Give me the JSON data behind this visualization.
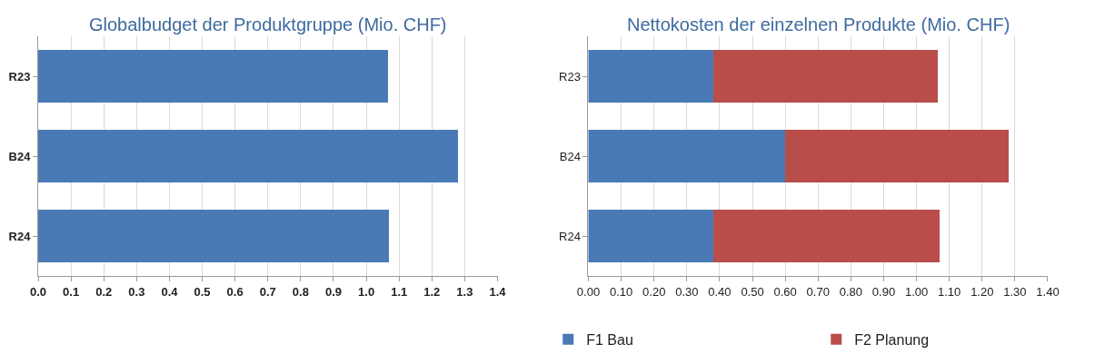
{
  "chart_data": [
    {
      "type": "bar",
      "title": "Globalbudget der Produktgruppe (Mio. CHF)",
      "orientation": "horizontal",
      "categories": [
        "R23",
        "B24",
        "R24"
      ],
      "values": [
        1.065,
        1.28,
        1.07
      ],
      "color": "#4a7ab5",
      "xlim": [
        0,
        1.4
      ],
      "xticks": [
        {
          "value": 0,
          "label": "0.0"
        },
        0.1,
        0.2,
        0.3,
        0.4,
        0.5,
        0.6,
        0.7,
        0.8,
        0.9,
        {
          "value": 1,
          "label": "1.0"
        },
        1.1,
        1.2,
        1.3,
        1.4
      ],
      "grid": "x",
      "legend": false
    },
    {
      "type": "bar",
      "title": "Nettokosten der einzelnen Produkte (Mio. CHF)",
      "orientation": "horizontal",
      "stacked": true,
      "categories": [
        "R23",
        "B24",
        "R24"
      ],
      "series": [
        {
          "name": "F1 Bau",
          "color": "#4a7ab5",
          "values": [
            0.38,
            0.6,
            0.38
          ]
        },
        {
          "name": "F2 Planung",
          "color": "#b84d4a",
          "values": [
            0.685,
            0.68,
            0.69
          ]
        }
      ],
      "xlim": [
        0,
        1.4
      ],
      "xticks": [
        {
          "value": 0,
          "label": "0.00"
        },
        {
          "value": 0.1,
          "label": "0.10"
        },
        {
          "value": 0.2,
          "label": "0.20"
        },
        {
          "value": 0.3,
          "label": "0.30"
        },
        {
          "value": 0.4,
          "label": "0.40"
        },
        {
          "value": 0.5,
          "label": "0.50"
        },
        {
          "value": 0.6,
          "label": "0.60"
        },
        {
          "value": 0.7,
          "label": "0.70"
        },
        {
          "value": 0.8,
          "label": "0.80"
        },
        {
          "value": 0.9,
          "label": "0.90"
        },
        {
          "value": 1,
          "label": "1.00"
        },
        {
          "value": 1.1,
          "label": "1.10"
        },
        {
          "value": 1.2,
          "label": "1.20"
        },
        {
          "value": 1.3,
          "label": "1.30"
        },
        {
          "value": 1.4,
          "label": "1.40"
        }
      ],
      "grid": "x",
      "legend": "bottom"
    }
  ]
}
